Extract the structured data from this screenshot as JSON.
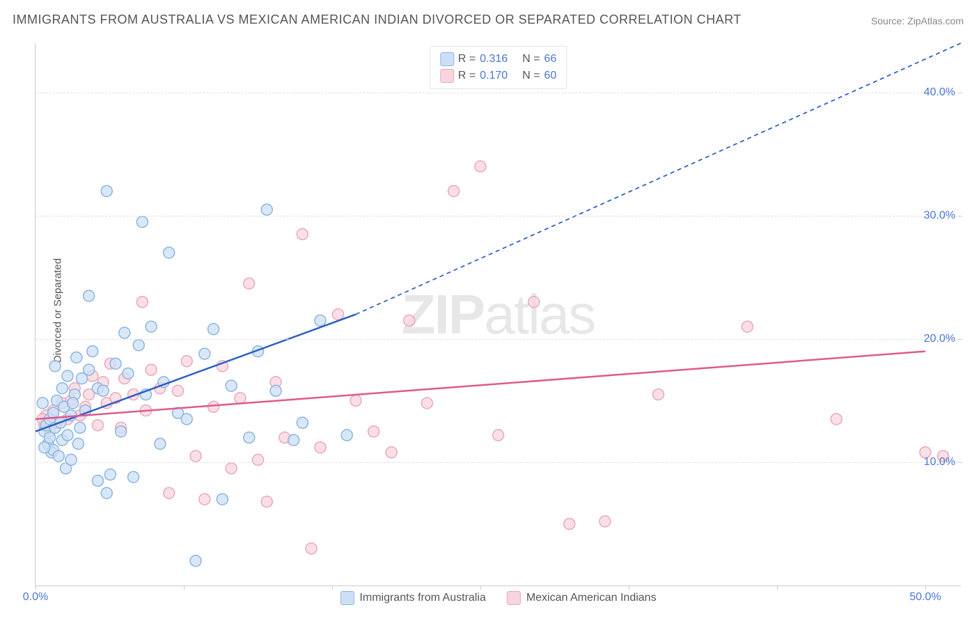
{
  "title": "IMMIGRANTS FROM AUSTRALIA VS MEXICAN AMERICAN INDIAN DIVORCED OR SEPARATED CORRELATION CHART",
  "source": "Source: ZipAtlas.com",
  "ylabel": "Divorced or Separated",
  "watermark_bold": "ZIP",
  "watermark_light": "atlas",
  "chart": {
    "type": "scatter",
    "xlim": [
      0,
      52
    ],
    "ylim": [
      0,
      44
    ],
    "xticks": [
      0,
      50
    ],
    "xtick_labels": [
      "0.0%",
      "50.0%"
    ],
    "xticks_minor": [
      8.33,
      16.67,
      25,
      33.33,
      41.67
    ],
    "yticks": [
      10,
      20,
      30,
      40
    ],
    "ytick_labels": [
      "10.0%",
      "20.0%",
      "30.0%",
      "40.0%"
    ],
    "grid_color": "#e0e0e0",
    "background_color": "#ffffff",
    "marker_radius": 8,
    "marker_stroke_width": 1.5,
    "line_width": 2.5,
    "dash_pattern": "6,5"
  },
  "series": [
    {
      "name": "Immigrants from Australia",
      "fill": "#cce0f5",
      "stroke": "#8bb5e0",
      "line_color": "#2d5fc4",
      "R_label": "R =",
      "R": "0.316",
      "N_label": "N =",
      "N": "66",
      "trend_solid": {
        "x1": 0,
        "y1": 12.5,
        "x2": 18,
        "y2": 22
      },
      "trend_dash": {
        "x1": 18,
        "y1": 22,
        "x2": 52,
        "y2": 44
      },
      "points": [
        [
          0.5,
          12.5
        ],
        [
          0.6,
          13
        ],
        [
          0.7,
          11.5
        ],
        [
          0.8,
          12
        ],
        [
          0.8,
          13.5
        ],
        [
          0.9,
          10.8
        ],
        [
          1,
          14
        ],
        [
          1,
          11
        ],
        [
          1.1,
          12.8
        ],
        [
          1.2,
          15
        ],
        [
          1.3,
          10.5
        ],
        [
          1.4,
          13.2
        ],
        [
          1.5,
          11.8
        ],
        [
          1.5,
          16
        ],
        [
          1.6,
          14.5
        ],
        [
          1.7,
          9.5
        ],
        [
          1.8,
          12.2
        ],
        [
          1.8,
          17
        ],
        [
          2,
          13.8
        ],
        [
          2,
          10.2
        ],
        [
          2.2,
          15.5
        ],
        [
          2.3,
          18.5
        ],
        [
          2.4,
          11.5
        ],
        [
          2.5,
          12.8
        ],
        [
          2.6,
          16.8
        ],
        [
          2.8,
          14.2
        ],
        [
          3,
          23.5
        ],
        [
          3,
          17.5
        ],
        [
          3.2,
          19
        ],
        [
          3.5,
          16
        ],
        [
          3.5,
          8.5
        ],
        [
          3.8,
          15.8
        ],
        [
          4,
          32
        ],
        [
          4,
          7.5
        ],
        [
          4.2,
          9
        ],
        [
          4.5,
          18
        ],
        [
          4.8,
          12.5
        ],
        [
          5,
          20.5
        ],
        [
          5.2,
          17.2
        ],
        [
          5.5,
          8.8
        ],
        [
          5.8,
          19.5
        ],
        [
          6,
          29.5
        ],
        [
          6.2,
          15.5
        ],
        [
          6.5,
          21
        ],
        [
          7,
          11.5
        ],
        [
          7.2,
          16.5
        ],
        [
          7.5,
          27
        ],
        [
          8,
          14
        ],
        [
          8.5,
          13.5
        ],
        [
          9,
          2
        ],
        [
          9.5,
          18.8
        ],
        [
          10,
          20.8
        ],
        [
          10.5,
          7
        ],
        [
          11,
          16.2
        ],
        [
          12,
          12
        ],
        [
          12.5,
          19
        ],
        [
          13,
          30.5
        ],
        [
          13.5,
          15.8
        ],
        [
          14.5,
          11.8
        ],
        [
          15,
          13.2
        ],
        [
          16,
          21.5
        ],
        [
          17.5,
          12.2
        ],
        [
          0.4,
          14.8
        ],
        [
          0.5,
          11.2
        ],
        [
          1.1,
          17.8
        ],
        [
          2.1,
          14.8
        ]
      ]
    },
    {
      "name": "Mexican American Indians",
      "fill": "#f8d5de",
      "stroke": "#eba7ba",
      "line_color": "#e05a8a",
      "R_label": "R =",
      "R": "0.170",
      "N_label": "N =",
      "N": "60",
      "trend_solid": {
        "x1": 0,
        "y1": 13.5,
        "x2": 50,
        "y2": 19
      },
      "trend_dash": null,
      "points": [
        [
          0.5,
          13
        ],
        [
          0.6,
          13.8
        ],
        [
          0.8,
          12.5
        ],
        [
          1,
          14.2
        ],
        [
          1.2,
          13.2
        ],
        [
          1.5,
          14.8
        ],
        [
          1.8,
          13.5
        ],
        [
          2,
          15
        ],
        [
          2.2,
          16
        ],
        [
          2.5,
          13.8
        ],
        [
          2.8,
          14.5
        ],
        [
          3,
          15.5
        ],
        [
          3.2,
          17
        ],
        [
          3.5,
          13
        ],
        [
          3.8,
          16.5
        ],
        [
          4,
          14.8
        ],
        [
          4.2,
          18
        ],
        [
          4.5,
          15.2
        ],
        [
          4.8,
          12.8
        ],
        [
          5,
          16.8
        ],
        [
          5.5,
          15.5
        ],
        [
          6,
          23
        ],
        [
          6.2,
          14.2
        ],
        [
          6.5,
          17.5
        ],
        [
          7,
          16
        ],
        [
          7.5,
          7.5
        ],
        [
          8,
          15.8
        ],
        [
          8.5,
          18.2
        ],
        [
          9,
          10.5
        ],
        [
          9.5,
          7
        ],
        [
          10,
          14.5
        ],
        [
          10.5,
          17.8
        ],
        [
          11,
          9.5
        ],
        [
          11.5,
          15.2
        ],
        [
          12,
          24.5
        ],
        [
          12.5,
          10.2
        ],
        [
          13,
          6.8
        ],
        [
          13.5,
          16.5
        ],
        [
          14,
          12
        ],
        [
          15,
          28.5
        ],
        [
          15.5,
          3
        ],
        [
          16,
          11.2
        ],
        [
          17,
          22
        ],
        [
          18,
          15
        ],
        [
          19,
          12.5
        ],
        [
          20,
          10.8
        ],
        [
          21,
          21.5
        ],
        [
          22,
          14.8
        ],
        [
          23.5,
          32
        ],
        [
          25,
          34
        ],
        [
          26,
          12.2
        ],
        [
          28,
          23
        ],
        [
          30,
          5
        ],
        [
          32,
          5.2
        ],
        [
          35,
          15.5
        ],
        [
          40,
          21
        ],
        [
          45,
          13.5
        ],
        [
          50,
          10.8
        ],
        [
          51,
          10.5
        ],
        [
          0.4,
          13.5
        ]
      ]
    }
  ],
  "legend_bottom": [
    {
      "swatch_fill": "#cce0f5",
      "swatch_stroke": "#8bb5e0",
      "label": "Immigrants from Australia"
    },
    {
      "swatch_fill": "#f8d5de",
      "swatch_stroke": "#eba7ba",
      "label": "Mexican American Indians"
    }
  ]
}
